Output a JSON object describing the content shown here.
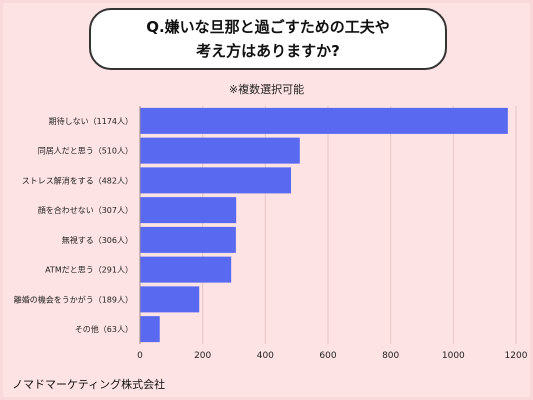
{
  "header": {
    "title_line1": "Q.嫌いな旦那と過ごすための工夫や",
    "title_line2": "考え方はありますか?",
    "subtitle": "※複数選択可能"
  },
  "footer": {
    "company": "ノマドマーケティング株式会社"
  },
  "chart_data": {
    "type": "bar",
    "orientation": "horizontal",
    "categories": [
      "期待しない",
      "同居人だと思う",
      "ストレス解消をする",
      "顔を合わせない",
      "無視する",
      "ATMだと思う",
      "離婚の機会をうかがう",
      "その他"
    ],
    "values": [
      1174,
      510,
      482,
      307,
      306,
      291,
      189,
      63
    ],
    "category_labels": [
      "期待しない（1174人）",
      "同居人だと思う（510人）",
      "ストレス解消をする（482人）",
      "顔を合わせない（307人）",
      "無視する（306人）",
      "ATMだと思う（291人）",
      "離婚の機会をうかがう（189人）",
      "その他（63人）"
    ],
    "xlim": [
      0,
      1200
    ],
    "xticks": [
      0,
      200,
      400,
      600,
      800,
      1000,
      1200
    ],
    "grid": true,
    "bar_color": "#5a6af0"
  }
}
